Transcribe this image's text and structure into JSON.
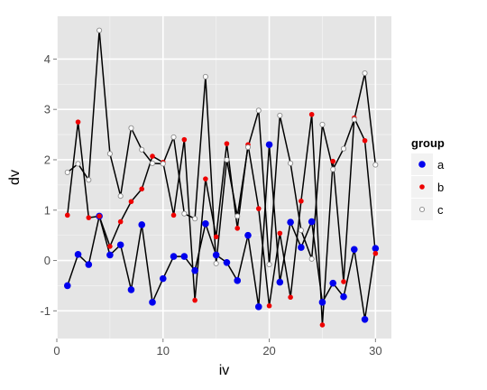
{
  "chart_data": {
    "type": "line",
    "xlabel": "iv",
    "ylabel": "dv",
    "xlim": [
      0,
      31.5
    ],
    "ylim": [
      -1.55,
      4.85
    ],
    "x_ticks": [
      0,
      10,
      20,
      30
    ],
    "y_ticks": [
      -1,
      0,
      1,
      2,
      3,
      4
    ],
    "x_tick_labels": [
      "0",
      "10",
      "20",
      "30"
    ],
    "y_tick_labels": [
      "-1",
      "0",
      "1",
      "2",
      "3",
      "4"
    ],
    "grid": true,
    "legend_placement": "right",
    "legend_title": "group",
    "panel_background": "#e5e5e5",
    "line_color": "#000000",
    "x": [
      1,
      2,
      3,
      4,
      5,
      6,
      7,
      8,
      9,
      10,
      11,
      12,
      13,
      14,
      15,
      16,
      17,
      18,
      19,
      20,
      21,
      22,
      23,
      24,
      25,
      26,
      27,
      28,
      29,
      30
    ],
    "series": [
      {
        "name": "a",
        "color": "#0000ee",
        "marker": "filled-circle",
        "values": [
          -0.5,
          0.12,
          -0.08,
          0.88,
          0.11,
          0.31,
          -0.58,
          0.71,
          -0.83,
          -0.36,
          0.08,
          0.08,
          -0.2,
          0.73,
          0.11,
          -0.04,
          -0.4,
          0.5,
          -0.92,
          2.3,
          -0.43,
          0.76,
          0.26,
          0.77,
          -0.83,
          -0.45,
          -0.72,
          0.22,
          -1.17,
          0.24
        ]
      },
      {
        "name": "b",
        "color": "#ee0000",
        "marker": "small-filled-circle",
        "values": [
          0.9,
          2.75,
          0.85,
          0.88,
          0.28,
          0.77,
          1.17,
          1.42,
          2.07,
          1.95,
          0.9,
          2.4,
          -0.79,
          1.62,
          0.47,
          2.32,
          0.64,
          2.3,
          1.03,
          -0.9,
          0.54,
          -0.73,
          1.18,
          2.9,
          -1.28,
          1.97,
          -0.42,
          2.83,
          2.38,
          0.14
        ]
      },
      {
        "name": "c",
        "color": "#ffffff",
        "marker": "open-circle",
        "values": [
          1.75,
          1.92,
          1.6,
          4.57,
          2.12,
          1.28,
          2.63,
          2.2,
          1.93,
          1.92,
          2.45,
          0.93,
          0.83,
          3.65,
          -0.06,
          2.0,
          0.88,
          2.25,
          2.98,
          -0.08,
          2.88,
          1.93,
          0.6,
          0.03,
          2.7,
          1.81,
          2.22,
          2.8,
          3.72,
          1.9
        ]
      }
    ]
  }
}
